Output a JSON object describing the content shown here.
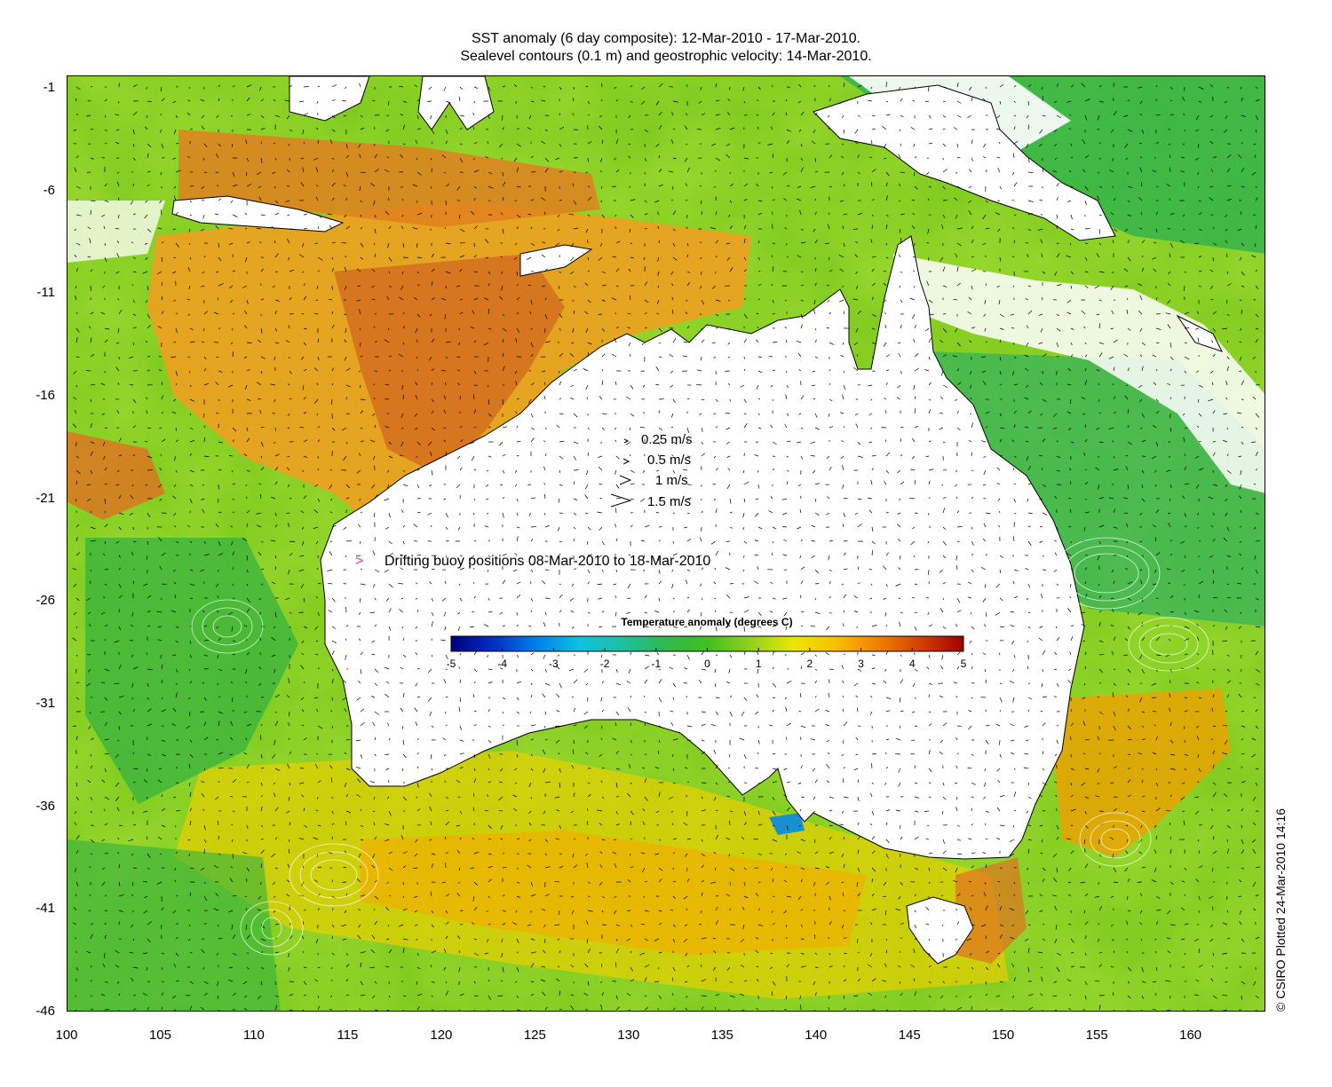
{
  "title": {
    "line1": "SST anomaly (6 day composite): 12-Mar-2010 - 17-Mar-2010.",
    "line2": "Sealevel contours (0.1 m) and geostrophic velocity: 14-Mar-2010."
  },
  "map": {
    "lon_range": [
      100,
      164
    ],
    "lat_range": [
      -46,
      -0.4
    ],
    "x_ticks": [
      "100",
      "105",
      "110",
      "115",
      "120",
      "125",
      "130",
      "135",
      "140",
      "145",
      "150",
      "155",
      "160"
    ],
    "y_ticks": [
      "-1",
      "-6",
      "-11",
      "-16",
      "-21",
      "-26",
      "-31",
      "-36",
      "-41",
      "-46"
    ],
    "land_color": "#ffffff",
    "coast_color": "#000000"
  },
  "velocity_legend": [
    {
      "label": "0.25 m/s",
      "speed": 0.25
    },
    {
      "label": "0.5 m/s",
      "speed": 0.5
    },
    {
      "label": "1 m/s",
      "speed": 1
    },
    {
      "label": "1.5 m/s",
      "speed": 1.5
    }
  ],
  "buoy_legend": {
    "marker": ">",
    "color": "#cc33cc",
    "text": "Drifting buoy positions 08-Mar-2010 to 18-Mar-2010"
  },
  "colorbar": {
    "title": "Temperature anomaly (degrees C)",
    "range": [
      -5,
      5
    ],
    "ticks": [
      "-5",
      "-4",
      "-3",
      "-2",
      "-1",
      "0",
      "1",
      "2",
      "3",
      "4",
      "5"
    ],
    "colors": [
      "#00007f",
      "#0030c0",
      "#0080e8",
      "#10c0e0",
      "#20c0a0",
      "#30b850",
      "#40c020",
      "#90d020",
      "#e8e800",
      "#f8c000",
      "#f08000",
      "#d04000",
      "#a00000"
    ]
  },
  "credit": "© CSIRO Plotted 24-Mar-2010 14:16"
}
